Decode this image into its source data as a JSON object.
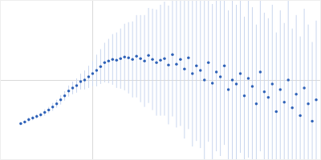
{
  "chart_data": {
    "type": "scatter",
    "marker": "circle",
    "color": "#2f62b8",
    "error_color": "#c9d6ee",
    "x": [
      25,
      30,
      35,
      40,
      45,
      50,
      55,
      60,
      65,
      70,
      75,
      80,
      85,
      90,
      95,
      100,
      105,
      110,
      115,
      120,
      125,
      130,
      135,
      140,
      145,
      150,
      155,
      160,
      165,
      170,
      175,
      180,
      185,
      190,
      195,
      200,
      205,
      210,
      215,
      220,
      225,
      230,
      235,
      240,
      245,
      250,
      255,
      260,
      265,
      270,
      275,
      280,
      285,
      290,
      295,
      300,
      305,
      310,
      315,
      320,
      325,
      330,
      335,
      340,
      345,
      350,
      355,
      360,
      365,
      370,
      375,
      380,
      385,
      390,
      395
    ],
    "values": [
      45,
      47,
      50,
      52,
      54,
      56,
      59,
      62,
      66,
      70,
      75,
      80,
      86,
      90,
      93,
      98,
      100,
      104,
      108,
      112,
      117,
      122,
      124,
      126,
      125,
      127,
      129,
      128,
      126,
      130,
      127,
      124,
      131,
      126,
      122,
      125,
      127,
      119,
      132,
      120,
      126,
      114,
      128,
      108,
      118,
      112,
      100,
      122,
      96,
      110,
      104,
      118,
      88,
      100,
      95,
      108,
      80,
      102,
      92,
      70,
      110,
      85,
      78,
      95,
      60,
      88,
      72,
      100,
      65,
      82,
      55,
      90,
      70,
      48,
      75
    ],
    "errors": [
      2,
      2,
      3,
      3,
      3,
      3,
      4,
      4,
      5,
      5,
      6,
      6,
      7,
      8,
      9,
      10,
      12,
      14,
      16,
      20,
      22,
      25,
      28,
      32,
      35,
      38,
      42,
      45,
      48,
      52,
      55,
      58,
      60,
      64,
      67,
      70,
      72,
      75,
      78,
      80,
      84,
      88,
      90,
      92,
      95,
      98,
      100,
      100,
      100,
      100,
      100,
      100,
      100,
      100,
      100,
      100,
      100,
      100,
      100,
      100,
      100,
      100,
      100,
      100,
      100,
      100,
      100,
      100,
      100,
      100,
      100,
      100,
      100,
      100,
      100
    ],
    "xlim": [
      0,
      400
    ],
    "ylim": [
      0,
      200
    ],
    "xticks": [
      115
    ],
    "yticks": [
      100
    ],
    "grid": true,
    "tick_labels": false
  }
}
